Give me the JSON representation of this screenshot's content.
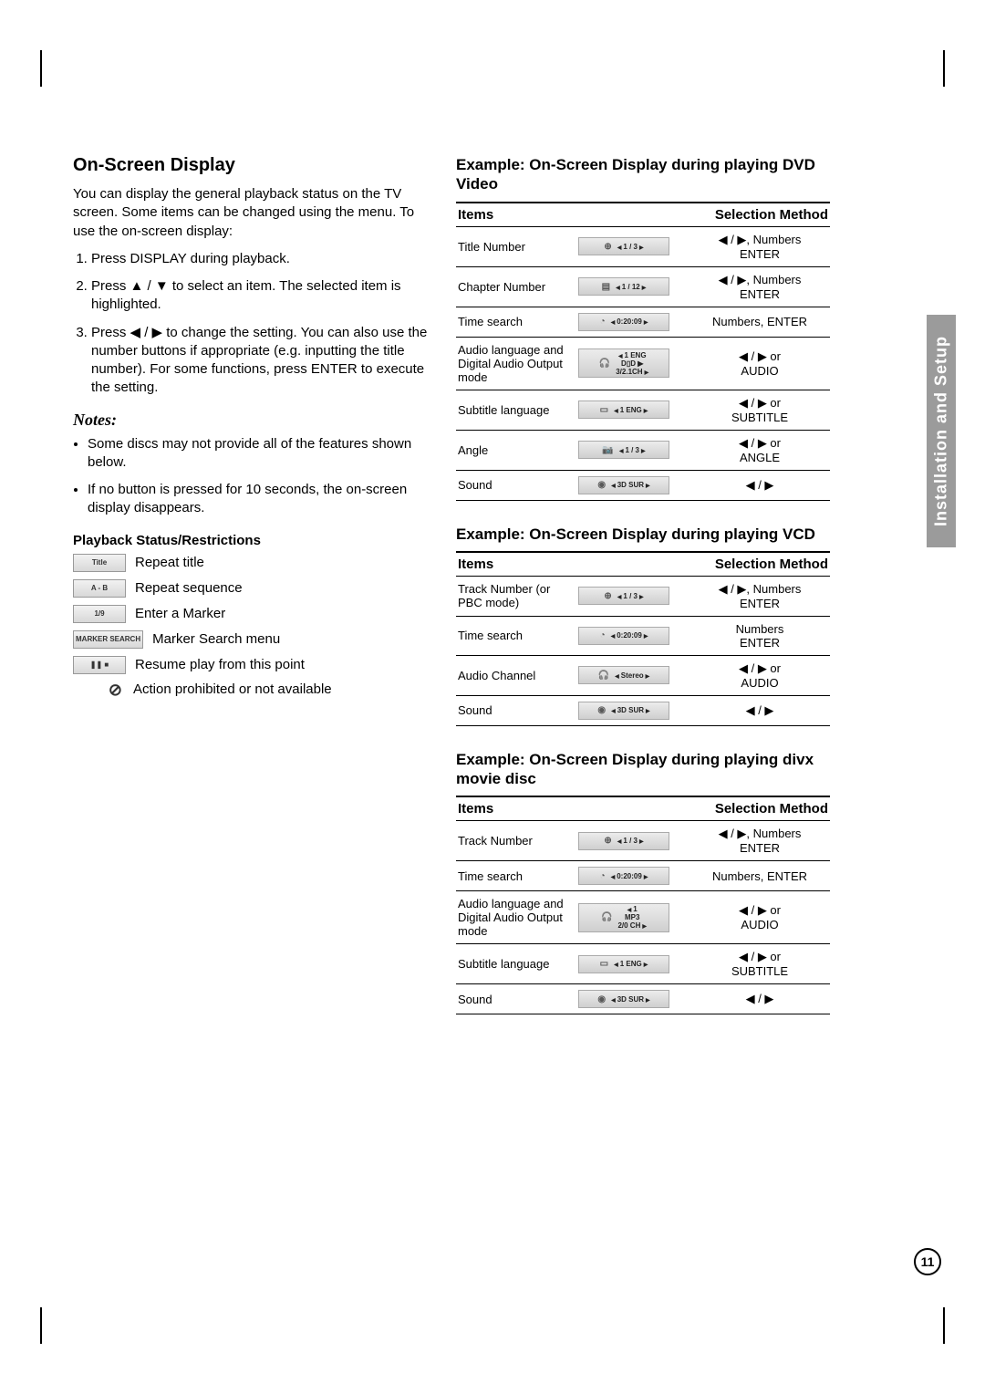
{
  "sideTab": "Installation and Setup",
  "pageNumber": "11",
  "left": {
    "heading": "On-Screen Display",
    "intro1": "You can display the general playback status on the TV screen. Some items can be changed using the menu. To use the on-screen display:",
    "steps": [
      "Press DISPLAY during playback.",
      "Press ▲ / ▼ to select an item. The selected item is highlighted.",
      "Press ◀ / ▶ to change the setting. You can also use the number buttons if appropriate (e.g. inputting the title number). For some functions, press ENTER to execute the setting."
    ],
    "notesTitle": "Notes:",
    "notes": [
      "Some discs may not provide all of the features shown below.",
      "If no button is pressed for 10 seconds, the on-screen display disappears."
    ],
    "pbHeading": "Playback Status/Restrictions",
    "pbRows": [
      {
        "badge": "Title",
        "label": "Repeat title"
      },
      {
        "badge": "A - B",
        "label": "Repeat sequence"
      },
      {
        "badge": "1/9",
        "label": "Enter a Marker"
      },
      {
        "badge": "MARKER SEARCH",
        "label": "Marker Search menu"
      },
      {
        "badge": "❚❚ ■",
        "label": "Resume play from this point"
      },
      {
        "badge": "⊘",
        "label": "Action prohibited or not available",
        "noborder": true
      }
    ]
  },
  "right": {
    "thItems": "Items",
    "thSel": "Selection Method",
    "dvd": {
      "heading": "Example: On-Screen Display during playing DVD Video",
      "rows": [
        {
          "item": "Title Number",
          "disp": "1 / 3",
          "icon": "⊕",
          "sel": "◀ / ▶, Numbers\nENTER"
        },
        {
          "item": "Chapter Number",
          "disp": "1 / 12",
          "icon": "▤",
          "sel": "◀ / ▶, Numbers\nENTER"
        },
        {
          "item": "Time search",
          "disp": "0:20:09",
          "icon": "◔",
          "sel": "Numbers, ENTER"
        },
        {
          "item": "Audio language and Digital Audio Output mode",
          "disp": "1 ENG\nD▯D ▶\n3/2.1CH",
          "icon": "🎧",
          "sel": "◀ / ▶ or\nAUDIO",
          "tall": true
        },
        {
          "item": "Subtitle language",
          "disp": "1 ENG",
          "icon": "▭",
          "sel": "◀ / ▶ or\nSUBTITLE"
        },
        {
          "item": "Angle",
          "disp": "1 / 3",
          "icon": "📷",
          "sel": "◀ / ▶ or\nANGLE"
        },
        {
          "item": "Sound",
          "disp": "3D SUR",
          "icon": "◉",
          "sel": "◀ / ▶"
        }
      ]
    },
    "vcd": {
      "heading": "Example: On-Screen Display during playing VCD",
      "rows": [
        {
          "item": "Track Number (or PBC mode)",
          "disp": "1 / 3",
          "icon": "⊕",
          "sel": "◀ / ▶, Numbers\nENTER"
        },
        {
          "item": "Time search",
          "disp": "0:20:09",
          "icon": "◔",
          "sel": "Numbers\nENTER"
        },
        {
          "item": "Audio Channel",
          "disp": "Stereo",
          "icon": "🎧",
          "sel": "◀ / ▶ or\nAUDIO"
        },
        {
          "item": "Sound",
          "disp": "3D SUR",
          "icon": "◉",
          "sel": "◀ / ▶"
        }
      ]
    },
    "divx": {
      "heading": "Example: On-Screen Display during playing divx movie disc",
      "rows": [
        {
          "item": "Track Number",
          "disp": "1 / 3",
          "icon": "⊕",
          "sel": "◀ / ▶, Numbers\nENTER"
        },
        {
          "item": "Time search",
          "disp": "0:20:09",
          "icon": "◔",
          "sel": "Numbers, ENTER"
        },
        {
          "item": "Audio language and Digital Audio Output mode",
          "disp": "1\nMP3\n2/0 CH",
          "icon": "🎧",
          "sel": "◀ / ▶ or\nAUDIO",
          "tall": true
        },
        {
          "item": "Subtitle language",
          "disp": "1 ENG",
          "icon": "▭",
          "sel": "◀ / ▶ or\nSUBTITLE"
        },
        {
          "item": "Sound",
          "disp": "3D SUR",
          "icon": "◉",
          "sel": "◀ / ▶"
        }
      ]
    }
  }
}
